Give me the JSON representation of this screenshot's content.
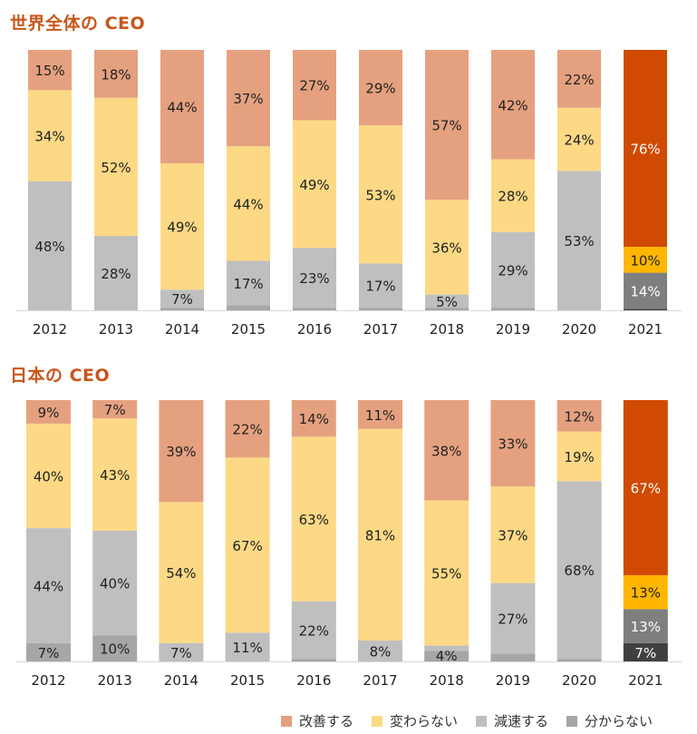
{
  "colors": {
    "improve": "#E5A17F",
    "same": "#FDD985",
    "slow": "#BFBFBF",
    "unknown": "#A6A6A6",
    "highlight_improve": "#D04A02",
    "highlight_same": "#FFB600",
    "highlight_slow": "#7F7F7F",
    "highlight_unknown": "#404040",
    "title": "#C9561A"
  },
  "legend": [
    {
      "key": "improve",
      "label": "改善する"
    },
    {
      "key": "same",
      "label": "変わらない"
    },
    {
      "key": "slow",
      "label": "減速する"
    },
    {
      "key": "unknown",
      "label": "分からない"
    }
  ],
  "chart_data": [
    {
      "type": "bar",
      "stacked": true,
      "title": "世界全体の CEO",
      "xlabel": "",
      "ylabel": "",
      "ylim": [
        0,
        100
      ],
      "grid": false,
      "highlight_category": "2021",
      "categories": [
        "2012",
        "2013",
        "2014",
        "2015",
        "2016",
        "2017",
        "2018",
        "2019",
        "2020",
        "2021"
      ],
      "series": [
        {
          "name": "分からない",
          "key": "unknown",
          "values": [
            0,
            0,
            1,
            2,
            1,
            1,
            1,
            1,
            0,
            0.5
          ],
          "labels": [
            "",
            "",
            "",
            "",
            "",
            "",
            "",
            "",
            "",
            ""
          ]
        },
        {
          "name": "減速する",
          "key": "slow",
          "values": [
            48,
            28,
            7,
            17,
            23,
            17,
            5,
            29,
            53,
            14
          ],
          "labels": [
            "48%",
            "28%",
            "7%",
            "17%",
            "23%",
            "17%",
            "5%",
            "29%",
            "53%",
            "14%"
          ]
        },
        {
          "name": "変わらない",
          "key": "same",
          "values": [
            34,
            52,
            49,
            44,
            49,
            53,
            36,
            28,
            24,
            10
          ],
          "labels": [
            "34%",
            "52%",
            "49%",
            "44%",
            "49%",
            "53%",
            "36%",
            "28%",
            "24%",
            "10%"
          ]
        },
        {
          "name": "改善する",
          "key": "improve",
          "values": [
            15,
            18,
            44,
            37,
            27,
            29,
            57,
            42,
            22,
            76
          ],
          "labels": [
            "15%",
            "18%",
            "44%",
            "37%",
            "27%",
            "29%",
            "57%",
            "42%",
            "22%",
            "76%"
          ]
        }
      ]
    },
    {
      "type": "bar",
      "stacked": true,
      "title": "日本の CEO",
      "xlabel": "",
      "ylabel": "",
      "ylim": [
        0,
        100
      ],
      "grid": false,
      "highlight_category": "2021",
      "categories": [
        "2012",
        "2013",
        "2014",
        "2015",
        "2016",
        "2017",
        "2018",
        "2019",
        "2020",
        "2021"
      ],
      "series": [
        {
          "name": "分からない",
          "key": "unknown",
          "values": [
            7,
            10,
            0,
            0,
            1,
            0,
            4,
            3,
            1,
            7
          ],
          "labels": [
            "7%",
            "10%",
            "",
            "",
            "1%",
            "",
            "4%",
            "3%",
            "1%",
            "7%"
          ]
        },
        {
          "name": "減速する",
          "key": "slow",
          "values": [
            44,
            40,
            7,
            11,
            22,
            8,
            2,
            27,
            68,
            13
          ],
          "labels": [
            "44%",
            "40%",
            "7%",
            "11%",
            "22%",
            "8%",
            "2%",
            "27%",
            "68%",
            "13%"
          ]
        },
        {
          "name": "変わらない",
          "key": "same",
          "values": [
            40,
            43,
            54,
            67,
            63,
            81,
            55,
            37,
            19,
            13
          ],
          "labels": [
            "40%",
            "43%",
            "54%",
            "67%",
            "63%",
            "81%",
            "55%",
            "37%",
            "19%",
            "13%"
          ]
        },
        {
          "name": "改善する",
          "key": "improve",
          "values": [
            9,
            7,
            39,
            22,
            14,
            11,
            38,
            33,
            12,
            67
          ],
          "labels": [
            "9%",
            "7%",
            "39%",
            "22%",
            "14%",
            "11%",
            "38%",
            "33%",
            "12%",
            "67%"
          ]
        }
      ]
    }
  ]
}
